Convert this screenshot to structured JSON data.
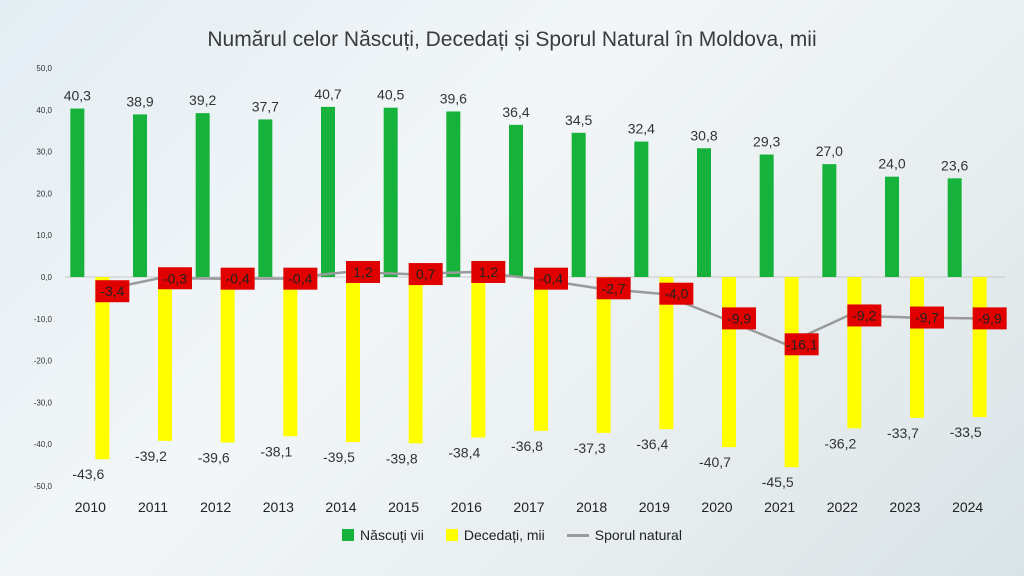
{
  "chart_data": {
    "type": "bar",
    "title": "Numărul celor Născuți, Decedați și Sporul Natural în Moldova, mii",
    "categories": [
      "2010",
      "2011",
      "2012",
      "2013",
      "2014",
      "2015",
      "2016",
      "2017",
      "2018",
      "2019",
      "2020",
      "2021",
      "2022",
      "2023",
      "2024"
    ],
    "series": [
      {
        "name": "Născuți vii",
        "kind": "bar",
        "color": "#16b23b",
        "values": [
          40.3,
          38.9,
          39.2,
          37.7,
          40.7,
          40.5,
          39.6,
          36.4,
          34.5,
          32.4,
          30.8,
          29.3,
          27.0,
          24.0,
          23.6
        ],
        "labels": [
          "40,3",
          "38,9",
          "39,2",
          "37,7",
          "40,7",
          "40,5",
          "39,6",
          "36,4",
          "34,5",
          "32,4",
          "30,8",
          "29,3",
          "27,0",
          "24,0",
          "23,6"
        ]
      },
      {
        "name": "Decedați, mii",
        "kind": "bar",
        "color": "#ffff00",
        "values": [
          -43.6,
          -39.2,
          -39.6,
          -38.1,
          -39.5,
          -39.8,
          -38.4,
          -36.8,
          -37.3,
          -36.4,
          -40.7,
          -45.5,
          -36.2,
          -33.7,
          -33.5
        ],
        "labels": [
          "-43,6",
          "-39,2",
          "-39,6",
          "-38,1",
          "-39,5",
          "-39,8",
          "-38,4",
          "-36,8",
          "-37,3",
          "-36,4",
          "-40,7",
          "-45,5",
          "-36,2",
          "-33,7",
          "-33,5"
        ]
      },
      {
        "name": "Sporul natural",
        "kind": "line",
        "color": "#9a9a9a",
        "label_bg": "#e00000",
        "values": [
          -3.4,
          -0.3,
          -0.4,
          -0.4,
          1.2,
          0.7,
          1.2,
          -0.4,
          -2.7,
          -4.0,
          -9.9,
          -16.1,
          -9.2,
          -9.7,
          -9.9
        ],
        "labels": [
          "-3,4",
          "-0,3",
          "-0,4",
          "-0,4",
          "1,2",
          "0,7",
          "1,2",
          "-0,4",
          "-2,7",
          "-4,0",
          "-9,9",
          "-16,1",
          "-9,2",
          "-9,7",
          "-9,9"
        ]
      }
    ],
    "ylim": [
      -50,
      50
    ],
    "yticks": [
      "50,0",
      "40,0",
      "30,0",
      "20,0",
      "10,0",
      "0,0",
      "-10,0",
      "-20,0",
      "-30,0",
      "-40,0",
      "-50,0"
    ],
    "grid": false,
    "legend": "bottom"
  }
}
